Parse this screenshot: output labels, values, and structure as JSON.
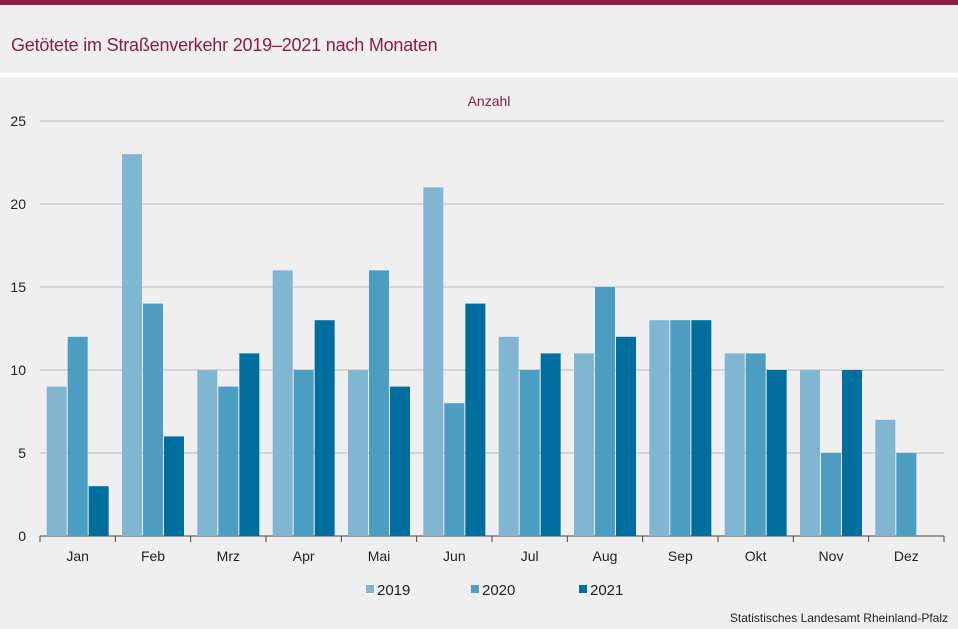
{
  "header": {
    "title": "Getötete im Straßenverkehr 2019–2021 nach Monaten"
  },
  "footer": {
    "source": "Statistisches Landesamt  Rheinland-Pfalz"
  },
  "chart_data": {
    "type": "bar",
    "title": "Getötete im Straßenverkehr 2019–2021 nach Monaten",
    "ylabel": "Anzahl",
    "xlabel": "",
    "categories": [
      "Jan",
      "Feb",
      "Mrz",
      "Apr",
      "Mai",
      "Jun",
      "Jul",
      "Aug",
      "Sep",
      "Okt",
      "Nov",
      "Dez"
    ],
    "series": [
      {
        "name": "2019",
        "color": "#80b6d2",
        "values": [
          9,
          23,
          10,
          16,
          10,
          21,
          12,
          11,
          13,
          11,
          10,
          7
        ]
      },
      {
        "name": "2020",
        "color": "#4c9dc2",
        "values": [
          12,
          14,
          9,
          10,
          16,
          8,
          10,
          15,
          13,
          11,
          5,
          5
        ]
      },
      {
        "name": "2021",
        "color": "#006f9f",
        "values": [
          3,
          6,
          11,
          13,
          9,
          14,
          11,
          12,
          13,
          10,
          10,
          null
        ]
      }
    ],
    "ylim": [
      0,
      25
    ],
    "yticks": [
      0,
      5,
      10,
      15,
      20,
      25
    ],
    "grid": true,
    "legend": "bottom-center"
  }
}
